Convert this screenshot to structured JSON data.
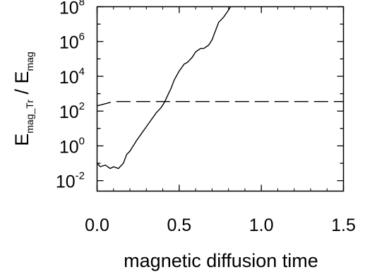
{
  "chart_data": {
    "type": "line",
    "xlabel": "magnetic diffusion time",
    "ylabel": {
      "num_base": "E",
      "num_sub": "mag_Tr",
      "sep": " / ",
      "den_base": "E",
      "den_sub": "mag"
    },
    "xlim": [
      0.0,
      1.5
    ],
    "ylim_log10": [
      -2.6,
      8.0
    ],
    "yscale": "log",
    "x_ticks": [
      {
        "value": 0.0,
        "label": "0.0"
      },
      {
        "value": 0.5,
        "label": "0.5"
      },
      {
        "value": 1.0,
        "label": "1.0"
      },
      {
        "value": 1.5,
        "label": "1.5"
      }
    ],
    "y_ticks": [
      {
        "exp": 8,
        "base": "10",
        "sup": "8"
      },
      {
        "exp": 6,
        "base": "10",
        "sup": "6"
      },
      {
        "exp": 4,
        "base": "10",
        "sup": "4"
      },
      {
        "exp": 2,
        "base": "10",
        "sup": "2"
      },
      {
        "exp": 0,
        "base": "10",
        "sup": "0"
      },
      {
        "exp": -2,
        "base": "10",
        "sup": "-2"
      }
    ],
    "series": [
      {
        "style": "solid",
        "points": [
          [
            0.0,
            -1.0
          ],
          [
            0.02,
            -1.2
          ],
          [
            0.05,
            -1.1
          ],
          [
            0.08,
            -1.3
          ],
          [
            0.1,
            -1.2
          ],
          [
            0.13,
            -1.3
          ],
          [
            0.16,
            -1.0
          ],
          [
            0.18,
            -0.5
          ],
          [
            0.2,
            -0.3
          ],
          [
            0.22,
            0.0
          ],
          [
            0.24,
            0.3
          ],
          [
            0.27,
            0.7
          ],
          [
            0.3,
            1.1
          ],
          [
            0.33,
            1.5
          ],
          [
            0.36,
            1.9
          ],
          [
            0.39,
            2.2
          ],
          [
            0.41,
            2.5
          ],
          [
            0.43,
            2.9
          ],
          [
            0.45,
            3.3
          ],
          [
            0.47,
            3.8
          ],
          [
            0.5,
            4.3
          ],
          [
            0.53,
            4.7
          ],
          [
            0.55,
            4.8
          ],
          [
            0.58,
            5.1
          ],
          [
            0.6,
            5.4
          ],
          [
            0.63,
            5.6
          ],
          [
            0.65,
            5.6
          ],
          [
            0.68,
            5.8
          ],
          [
            0.7,
            6.1
          ],
          [
            0.72,
            6.6
          ],
          [
            0.74,
            7.1
          ],
          [
            0.77,
            7.4
          ],
          [
            0.8,
            7.8
          ],
          [
            0.82,
            8.1
          ]
        ]
      },
      {
        "style": "dashed",
        "points": [
          [
            0.0,
            2.3
          ],
          [
            0.04,
            2.4
          ],
          [
            0.08,
            2.5
          ],
          [
            0.12,
            2.55
          ],
          [
            1.5,
            2.55
          ]
        ]
      }
    ],
    "grid": false
  }
}
